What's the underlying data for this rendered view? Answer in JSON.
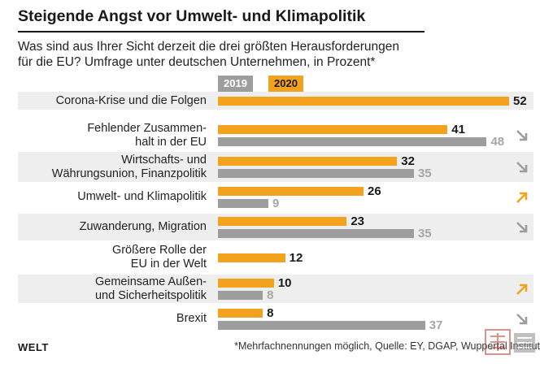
{
  "header": {
    "title": "Steigende Angst vor Umwelt- und Klimapolitik",
    "subtitle_line1": "Was sind aus Ihrer Sicht derzeit die drei größten Herausforderungen",
    "subtitle_line2": "für die EU? Umfrage unter deutschen Unternehmen, in Prozent*"
  },
  "footer": {
    "brand": "WELT",
    "source": "*Mehrfachnennungen möglich, Quelle: EY, DGAP, Wuppertal Institut"
  },
  "colors": {
    "accent_2020": "#f3a21d",
    "gray_2019": "#9d9d9d",
    "band_bg": "#eeeeee"
  },
  "chart_data": {
    "type": "bar",
    "orientation": "horizontal",
    "title": "Steigende Angst vor Umwelt- und Klimapolitik",
    "legend": [
      "2019",
      "2020"
    ],
    "legend_position": "top-left",
    "xlim": [
      0,
      52
    ],
    "categories": [
      {
        "lines": [
          "Corona-Krise und die Folgen"
        ],
        "v2020": 52,
        "v2019": null,
        "trend": null
      },
      {
        "lines": [
          "Fehlender Zusammen-",
          "halt in der EU"
        ],
        "v2020": 41,
        "v2019": 48,
        "trend": "down"
      },
      {
        "lines": [
          "Wirtschafts- und",
          "Währungsunion, Finanzpolitik"
        ],
        "v2020": 32,
        "v2019": 35,
        "trend": "down"
      },
      {
        "lines": [
          "Umwelt- und Klimapolitik"
        ],
        "v2020": 26,
        "v2019": 9,
        "trend": "up"
      },
      {
        "lines": [
          "Zuwanderung, Migration"
        ],
        "v2020": 23,
        "v2019": 35,
        "trend": "down"
      },
      {
        "lines": [
          "Größere Rolle der",
          "EU in der Welt"
        ],
        "v2020": 12,
        "v2019": null,
        "trend": null
      },
      {
        "lines": [
          "Gemeinsame Außen-",
          "und Sicherheitspolitik"
        ],
        "v2020": 10,
        "v2019": 8,
        "trend": "up"
      },
      {
        "lines": [
          "Brexit"
        ],
        "v2020": 8,
        "v2019": 37,
        "trend": "down"
      }
    ]
  }
}
